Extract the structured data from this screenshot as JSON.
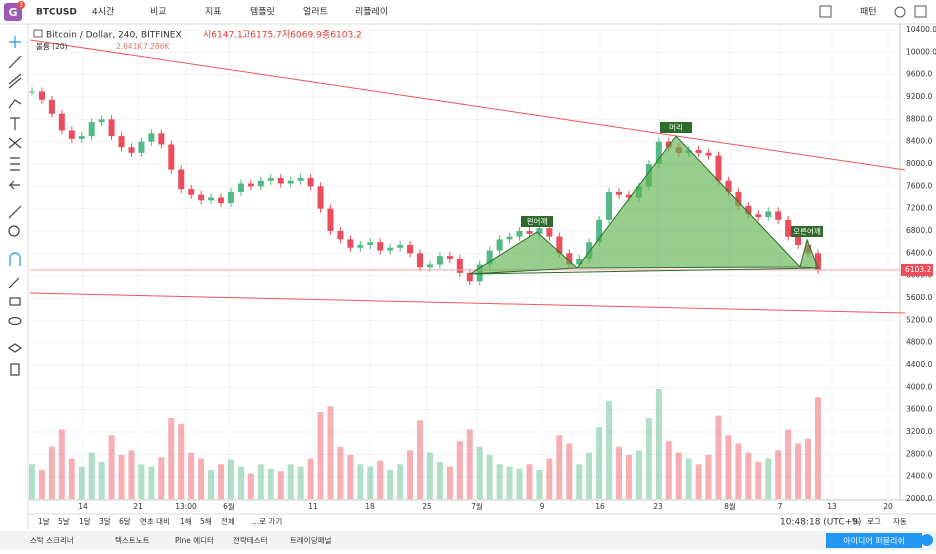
{
  "toolbar": {
    "badge": "3",
    "logo": "G",
    "symbol": "BTCUSD",
    "interval": "4시간",
    "items": [
      "비교",
      "지표",
      "템플릿",
      "얼러트",
      "리플레이"
    ],
    "pattern": "패턴"
  },
  "legend": {
    "title": "Bitcoin / Dollar, 240, BITFINEX",
    "ohlc": [
      "시6147.1",
      "고6175.7",
      "저6069.9",
      "종6103.2"
    ],
    "volume": "볼륨 (20)",
    "vol_values": [
      "2.641K",
      "7.286K"
    ]
  },
  "chart_data": {
    "type": "candlestick",
    "ylim": [
      2000,
      10400
    ],
    "yticks": [
      {
        "value": 10400,
        "label": "10400.0"
      },
      {
        "value": 10000,
        "label": "10000.0"
      },
      {
        "value": 9600,
        "label": "9600.0"
      },
      {
        "value": 9200,
        "label": "9200.0"
      },
      {
        "value": 8800,
        "label": "8800.0"
      },
      {
        "value": 8400,
        "label": "8400.0"
      },
      {
        "value": 8000,
        "label": "8000.0"
      },
      {
        "value": 7600,
        "label": "7600.0"
      },
      {
        "value": 7200,
        "label": "7200.0"
      },
      {
        "value": 6800,
        "label": "6800.0"
      },
      {
        "value": 6400,
        "label": "6400.0"
      },
      {
        "value": 6000,
        "label": "6000.0"
      },
      {
        "value": 5600,
        "label": "5600.0"
      },
      {
        "value": 5200,
        "label": "5200.0"
      },
      {
        "value": 4800,
        "label": "4800.0"
      },
      {
        "value": 4400,
        "label": "4400.0"
      },
      {
        "value": 4000,
        "label": "4000.0"
      },
      {
        "value": 3600,
        "label": "3600.0"
      },
      {
        "value": 3200,
        "label": "3200.0"
      },
      {
        "value": 2800,
        "label": "2800.0"
      },
      {
        "value": 2400,
        "label": "2400.0"
      },
      {
        "value": 2000,
        "label": "2000.0"
      }
    ],
    "x_labels": [
      "14",
      "21",
      "13:00",
      "6월",
      "11",
      "18",
      "25",
      "7월",
      "9",
      "16",
      "23",
      "8월",
      "7",
      "13",
      "20"
    ],
    "closes": [
      9300,
      9150,
      8900,
      8600,
      8450,
      8500,
      8750,
      8800,
      8500,
      8300,
      8200,
      8400,
      8550,
      8350,
      7900,
      7550,
      7450,
      7350,
      7400,
      7300,
      7500,
      7650,
      7600,
      7700,
      7750,
      7650,
      7700,
      7750,
      7600,
      7200,
      6800,
      6650,
      6500,
      6550,
      6600,
      6450,
      6500,
      6550,
      6400,
      6150,
      6200,
      6350,
      6300,
      6050,
      5900,
      6200,
      6450,
      6650,
      6700,
      6800,
      6750,
      6850,
      6700,
      6400,
      6200,
      6300,
      6600,
      7000,
      7500,
      7450,
      7400,
      7600,
      8000,
      8400,
      8300,
      8200,
      8250,
      8200,
      8150,
      7700,
      7500,
      7250,
      7100,
      7050,
      7150,
      7000,
      6700,
      6550,
      6400,
      6103.2
    ],
    "volumes": [
      30,
      25,
      45,
      60,
      35,
      28,
      40,
      32,
      55,
      38,
      42,
      30,
      28,
      36,
      70,
      65,
      40,
      35,
      25,
      30,
      34,
      28,
      22,
      30,
      26,
      24,
      30,
      28,
      35,
      75,
      80,
      45,
      38,
      30,
      28,
      33,
      25,
      30,
      42,
      68,
      40,
      32,
      28,
      50,
      60,
      45,
      38,
      30,
      28,
      26,
      30,
      25,
      35,
      55,
      48,
      30,
      40,
      62,
      85,
      45,
      38,
      42,
      70,
      95,
      50,
      40,
      35,
      30,
      38,
      72,
      55,
      48,
      40,
      32,
      35,
      42,
      60,
      48,
      52,
      88
    ],
    "pattern_labels": [
      "왼어깨",
      "머리",
      "오른어깨"
    ],
    "price_label": {
      "value": 6103.2,
      "label": "6103.2"
    }
  },
  "bottom_bar": {
    "ranges": [
      "1날",
      "5날",
      "1달",
      "3달",
      "6달",
      "연초 대비",
      "1해",
      "5해",
      "전체",
      "...로 가기"
    ],
    "time": "10:48:18 (UTC+9)",
    "options": [
      "%",
      "로그",
      "자동"
    ]
  },
  "footer": {
    "tabs": [
      "스탁 스크리너",
      "텍스트노트",
      "Pine 에디터",
      "전략테스터",
      "트레이딩패널"
    ],
    "publish": "아이디어 퍼블리쉬"
  }
}
